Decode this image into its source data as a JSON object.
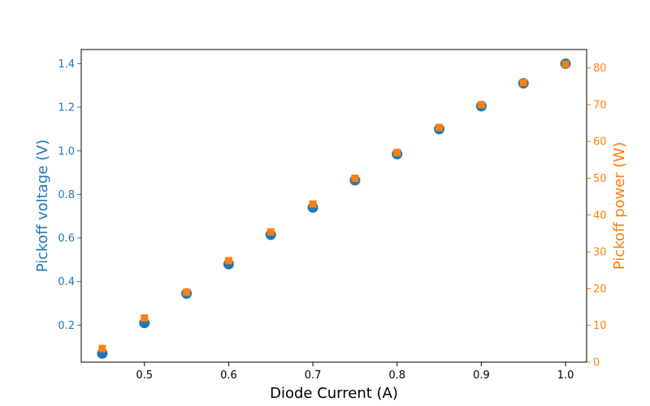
{
  "chart_data": {
    "type": "scatter",
    "xlabel": "Diode Current (A)",
    "xlim": [
      0.425,
      1.025
    ],
    "xticks": [
      "0.5",
      "0.6",
      "0.7",
      "0.8",
      "0.9",
      "1.0"
    ],
    "left_axis": {
      "label": "Pickoff voltage (V)",
      "color": "#1f77b4",
      "lim": [
        0.03,
        1.465
      ],
      "ticks": [
        "0.2",
        "0.4",
        "0.6",
        "0.8",
        "1.0",
        "1.2",
        "1.4"
      ]
    },
    "right_axis": {
      "label": "Pickoff power (W)",
      "color": "#ff7f0e",
      "lim": [
        0,
        85
      ],
      "ticks": [
        "0",
        "10",
        "20",
        "30",
        "40",
        "50",
        "60",
        "70",
        "80"
      ]
    },
    "series": [
      {
        "axis": "left",
        "marker": "circle",
        "color": "#1f77b4",
        "x": [
          0.45,
          0.5,
          0.55,
          0.6,
          0.65,
          0.7,
          0.75,
          0.8,
          0.85,
          0.9,
          0.95,
          1.0
        ],
        "y": [
          0.07,
          0.21,
          0.345,
          0.48,
          0.615,
          0.74,
          0.865,
          0.985,
          1.1,
          1.205,
          1.31,
          1.4
        ]
      },
      {
        "axis": "right",
        "marker": "square",
        "color": "#ff7f0e",
        "x": [
          0.45,
          0.5,
          0.55,
          0.6,
          0.65,
          0.7,
          0.75,
          0.8,
          0.85,
          0.9,
          0.95,
          1.0
        ],
        "y": [
          3.7,
          12.0,
          19.0,
          27.6,
          35.4,
          43.0,
          50.0,
          57.0,
          63.8,
          70.0,
          76.0,
          81.0
        ]
      }
    ]
  }
}
